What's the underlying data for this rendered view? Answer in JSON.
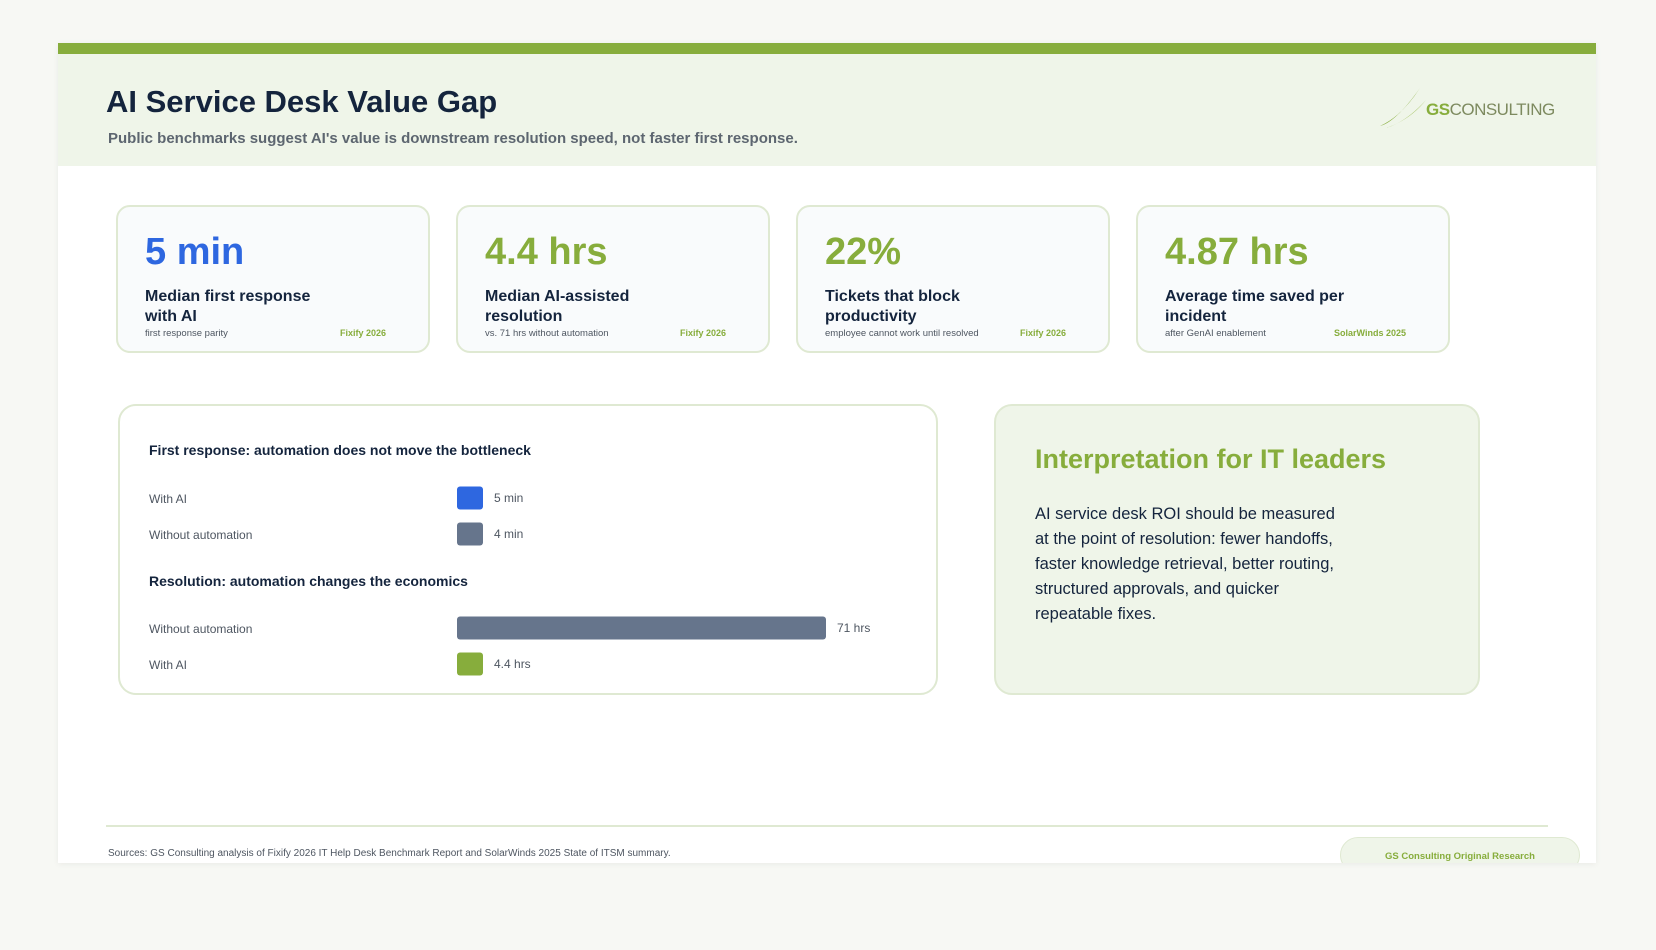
{
  "header": {
    "title": "AI Service Desk Value Gap",
    "subtitle": "Public benchmarks suggest AI's value is downstream resolution speed, not faster first response.",
    "logo_text_gs": "GS",
    "logo_text_rest": "CONSULTING"
  },
  "kpis": [
    {
      "value": "5 min",
      "label": "Median first response with AI",
      "note": "first response parity",
      "source": "Fixify 2026",
      "color": "#2e67e0"
    },
    {
      "value": "4.4 hrs",
      "label": "Median AI-assisted resolution",
      "note": "vs. 71 hrs without automation",
      "source": "Fixify 2026",
      "color": "#87ad3c"
    },
    {
      "value": "22%",
      "label": "Tickets that block productivity",
      "note": "employee cannot work until resolved",
      "source": "Fixify 2026",
      "color": "#87ad3c"
    },
    {
      "value": "4.87 hrs",
      "label": "Average time saved per incident",
      "note": "after GenAI enablement",
      "source": "SolarWinds 2025",
      "color": "#87ad3c"
    }
  ],
  "chart_data": [
    {
      "type": "bar",
      "orientation": "horizontal",
      "title": "First response: automation does not move the bottleneck",
      "unit": "min",
      "categories": [
        "With AI",
        "Without automation"
      ],
      "values": [
        5,
        4
      ],
      "value_labels": [
        "5 min",
        "4 min"
      ],
      "colors": [
        "#2e67e0",
        "#66758c"
      ]
    },
    {
      "type": "bar",
      "orientation": "horizontal",
      "title": "Resolution: automation changes the economics",
      "unit": "hrs",
      "categories": [
        "Without automation",
        "With AI"
      ],
      "values": [
        71,
        4.4
      ],
      "value_labels": [
        "71 hrs",
        "4.4 hrs"
      ],
      "colors": [
        "#66758c",
        "#87ad3c"
      ]
    }
  ],
  "interpretation": {
    "title": "Interpretation for IT leaders",
    "body": "AI service desk ROI should be measured at the point of resolution: fewer handoffs, faster knowledge retrieval, better routing, structured approvals, and quicker repeatable fixes."
  },
  "footer": {
    "sources": "Sources: GS Consulting analysis of Fixify 2026 IT Help Desk Benchmark Report and SolarWinds 2025 State of ITSM summary.",
    "badge": "GS Consulting Original Research"
  },
  "colors": {
    "accent": "#87ad3c",
    "navy": "#14243d",
    "blue": "#2e67e0",
    "slate": "#66758c"
  }
}
